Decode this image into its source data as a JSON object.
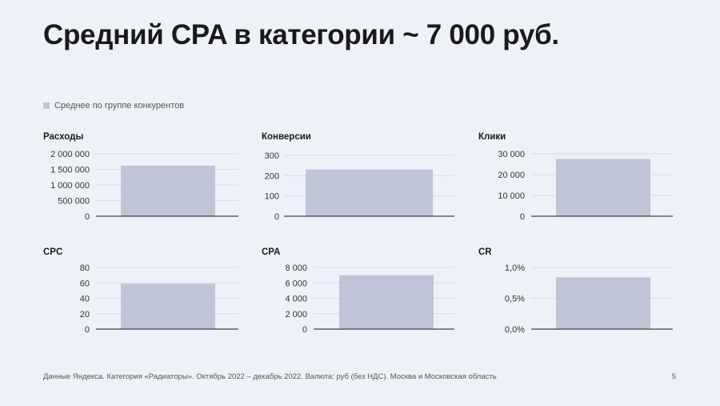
{
  "slide": {
    "title": "Средний CPA в категории ~ 7 000 руб.",
    "legend_label": "Среднее по группе конкурентов",
    "footnote": "Данные Яндекса. Категория «Радиаторы». Октябрь 2022 – декабрь 2022. Валюта: руб (без НДС). Москва и Московская область",
    "page_number": "5"
  },
  "colors": {
    "bar": "#bfc4d6",
    "grid": "#d8dce6",
    "axis": "#444444",
    "background": "#eef1f8"
  },
  "chart_data": [
    {
      "type": "bar",
      "title": "Расходы",
      "series": [
        {
          "name": "Среднее по группе конкурентов",
          "values": [
            1620000
          ]
        }
      ],
      "ylim": [
        0,
        2000000
      ],
      "yticks": [
        0,
        500000,
        1000000,
        1500000,
        2000000
      ],
      "ytick_labels": [
        "0",
        "500 000",
        "1 000 000",
        "1 500 000",
        "2 000 000"
      ]
    },
    {
      "type": "bar",
      "title": "Конверсии",
      "series": [
        {
          "name": "Среднее по группе конкурентов",
          "values": [
            230
          ]
        }
      ],
      "ylim": [
        0,
        300
      ],
      "yticks": [
        0,
        100,
        200,
        300
      ],
      "ytick_labels": [
        "0",
        "100",
        "200",
        "300"
      ]
    },
    {
      "type": "bar",
      "title": "Клики",
      "series": [
        {
          "name": "Среднее по группе конкурентов",
          "values": [
            27500
          ]
        }
      ],
      "ylim": [
        0,
        30000
      ],
      "yticks": [
        0,
        10000,
        20000,
        30000
      ],
      "ytick_labels": [
        "0",
        "10 000",
        "20 000",
        "30 000"
      ]
    },
    {
      "type": "bar",
      "title": "CPC",
      "series": [
        {
          "name": "Среднее по группе конкурентов",
          "values": [
            59
          ]
        }
      ],
      "ylim": [
        0,
        80
      ],
      "yticks": [
        0,
        20,
        40,
        60,
        80
      ],
      "ytick_labels": [
        "0",
        "20",
        "40",
        "60",
        "80"
      ]
    },
    {
      "type": "bar",
      "title": "CPA",
      "series": [
        {
          "name": "Среднее по группе конкурентов",
          "values": [
            7000
          ]
        }
      ],
      "ylim": [
        0,
        8000
      ],
      "yticks": [
        0,
        2000,
        4000,
        6000,
        8000
      ],
      "ytick_labels": [
        "0",
        "2 000",
        "4 000",
        "6 000",
        "8 000"
      ]
    },
    {
      "type": "bar",
      "title": "CR",
      "series": [
        {
          "name": "Среднее по группе конкурентов",
          "values": [
            0.84
          ]
        }
      ],
      "ylim": [
        0,
        1.0
      ],
      "yticks": [
        0,
        0.5,
        1.0
      ],
      "ytick_labels": [
        "0,0%",
        "0,5%",
        "1,0%"
      ]
    }
  ]
}
